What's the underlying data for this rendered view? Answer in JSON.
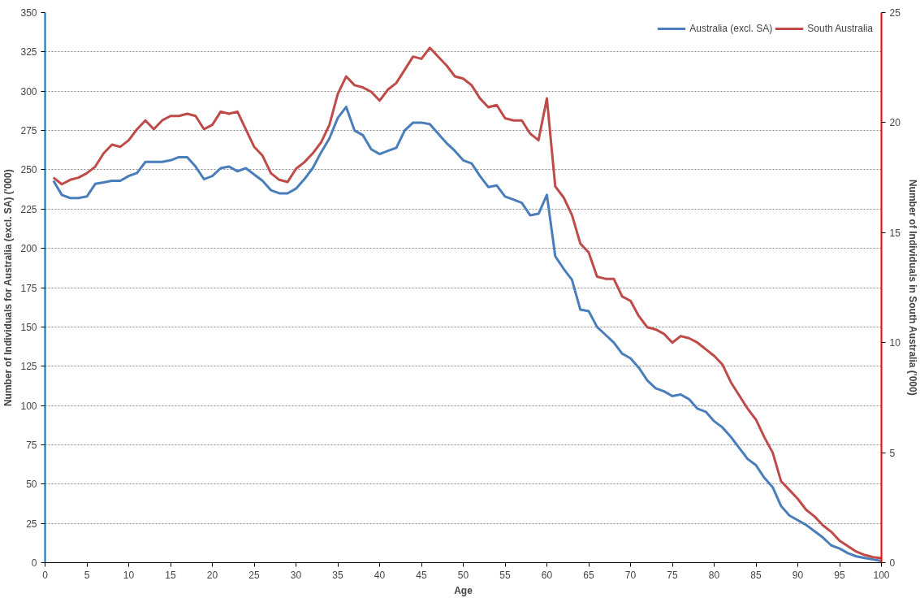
{
  "chart_data": {
    "type": "line",
    "xlabel": "Age",
    "ylabel": "Number of Individuals for Australia (excl. SA) ('000)",
    "y2label": "Number of Individuals in South Australia ('000)",
    "x": [
      1,
      2,
      3,
      4,
      5,
      6,
      7,
      8,
      9,
      10,
      11,
      12,
      13,
      14,
      15,
      16,
      17,
      18,
      19,
      20,
      21,
      22,
      23,
      24,
      25,
      26,
      27,
      28,
      29,
      30,
      31,
      32,
      33,
      34,
      35,
      36,
      37,
      38,
      39,
      40,
      41,
      42,
      43,
      44,
      45,
      46,
      47,
      48,
      49,
      50,
      51,
      52,
      53,
      54,
      55,
      56,
      57,
      58,
      59,
      60,
      61,
      62,
      63,
      64,
      65,
      66,
      67,
      68,
      69,
      70,
      71,
      72,
      73,
      74,
      75,
      76,
      77,
      78,
      79,
      80,
      81,
      82,
      83,
      84,
      85,
      86,
      87,
      88,
      89,
      90,
      91,
      92,
      93,
      94,
      95,
      96,
      97,
      98,
      99,
      100
    ],
    "series": [
      {
        "name": "Australia (excl. SA)",
        "color": "#4a7ebb",
        "values": [
          243,
          234,
          232,
          232,
          233,
          241,
          242,
          243,
          243,
          246,
          248,
          255,
          255,
          255,
          256,
          258,
          258,
          252,
          244,
          246,
          251,
          252,
          249,
          251,
          247,
          243,
          237,
          235,
          235,
          238,
          244,
          251,
          261,
          270,
          283,
          290,
          275,
          272,
          263,
          260,
          262,
          264,
          275,
          280,
          280,
          279,
          273,
          267,
          262,
          256,
          254,
          246,
          239,
          240,
          233,
          231,
          229,
          221,
          222,
          234,
          195,
          187,
          180,
          161,
          160,
          150,
          145,
          140,
          133,
          130,
          124,
          116,
          111,
          109,
          106,
          107,
          104,
          98,
          96,
          90,
          86,
          80,
          73,
          66,
          62,
          54,
          48,
          36,
          30,
          27,
          24,
          20,
          16,
          11,
          9,
          6,
          4,
          3,
          2,
          1
        ]
      },
      {
        "name": "South Australia",
        "color": "#be4b48",
        "axis": "y2",
        "values": [
          17.5,
          17.2,
          17.4,
          17.5,
          17.7,
          18.0,
          18.6,
          19.0,
          18.9,
          19.2,
          19.7,
          20.1,
          19.7,
          20.1,
          20.3,
          20.3,
          20.4,
          20.3,
          19.7,
          19.9,
          20.5,
          20.4,
          20.5,
          19.7,
          18.9,
          18.5,
          17.7,
          17.4,
          17.3,
          17.9,
          18.2,
          18.6,
          19.1,
          19.9,
          21.3,
          22.1,
          21.7,
          21.6,
          21.4,
          21.0,
          21.5,
          21.8,
          22.4,
          23.0,
          22.9,
          23.4,
          23.0,
          22.6,
          22.1,
          22.0,
          21.7,
          21.1,
          20.7,
          20.8,
          20.2,
          20.1,
          20.1,
          19.5,
          19.2,
          21.1,
          17.1,
          16.6,
          15.8,
          14.5,
          14.1,
          13.0,
          12.9,
          12.9,
          12.1,
          11.9,
          11.2,
          10.7,
          10.6,
          10.4,
          10.0,
          10.3,
          10.2,
          10.0,
          9.7,
          9.4,
          9.0,
          8.2,
          7.6,
          7.0,
          6.5,
          5.7,
          5.0,
          3.7,
          3.3,
          2.9,
          2.4,
          2.1,
          1.7,
          1.4,
          1.0,
          0.75,
          0.5,
          0.35,
          0.25,
          0.2
        ]
      }
    ],
    "xlim": [
      0,
      100
    ],
    "xticks": [
      0,
      5,
      10,
      15,
      20,
      25,
      30,
      35,
      40,
      45,
      50,
      55,
      60,
      65,
      70,
      75,
      80,
      85,
      90,
      95,
      100
    ],
    "ylim": [
      0,
      350
    ],
    "yticks": [
      0,
      25,
      50,
      75,
      100,
      125,
      150,
      175,
      200,
      225,
      250,
      275,
      300,
      325,
      350
    ],
    "y2lim": [
      0,
      25
    ],
    "y2ticks": [
      0,
      5,
      10,
      15,
      20,
      25
    ],
    "grid": "y",
    "legend": "top right",
    "marker": "none",
    "line_style": "solid"
  }
}
